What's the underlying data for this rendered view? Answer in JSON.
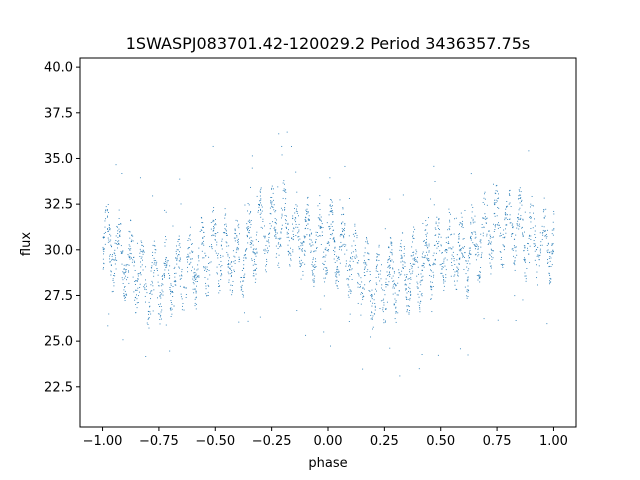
{
  "chart_data": {
    "type": "scatter",
    "title": "1SWASPJ083701.42-120029.2 Period 3436357.75s",
    "xlabel": "phase",
    "ylabel": "flux",
    "xlim": [
      -1.1,
      1.1
    ],
    "ylim": [
      20.3,
      40.5
    ],
    "xticks": [
      -1.0,
      -0.75,
      -0.5,
      -0.25,
      0.0,
      0.25,
      0.5,
      0.75,
      1.0
    ],
    "xtick_labels": [
      "−1.00",
      "−0.75",
      "−0.50",
      "−0.25",
      "0.00",
      "0.25",
      "0.50",
      "0.75",
      "1.00"
    ],
    "yticks": [
      22.5,
      25.0,
      27.5,
      30.0,
      32.5,
      35.0,
      37.5,
      40.0
    ],
    "ytick_labels": [
      "22.5",
      "25.0",
      "27.5",
      "30.0",
      "32.5",
      "35.0",
      "37.5",
      "40.0"
    ],
    "grid": false,
    "marker_color": "#1f77b4",
    "series": [
      {
        "x": [
          -1.0,
          -0.9,
          -0.8,
          -0.7,
          -0.6,
          -0.5,
          -0.4,
          -0.3,
          -0.2,
          -0.1,
          0.0,
          0.1,
          0.2,
          0.3,
          0.4,
          0.5,
          0.6,
          0.7,
          0.8,
          0.9,
          1.0
        ],
        "y": [
          30.5,
          29.5,
          28.0,
          28.5,
          29.0,
          30.0,
          29.5,
          31.0,
          31.5,
          30.5,
          30.5,
          29.5,
          28.0,
          28.5,
          29.0,
          30.0,
          29.5,
          31.0,
          31.5,
          30.5,
          30.5
        ]
      }
    ]
  }
}
